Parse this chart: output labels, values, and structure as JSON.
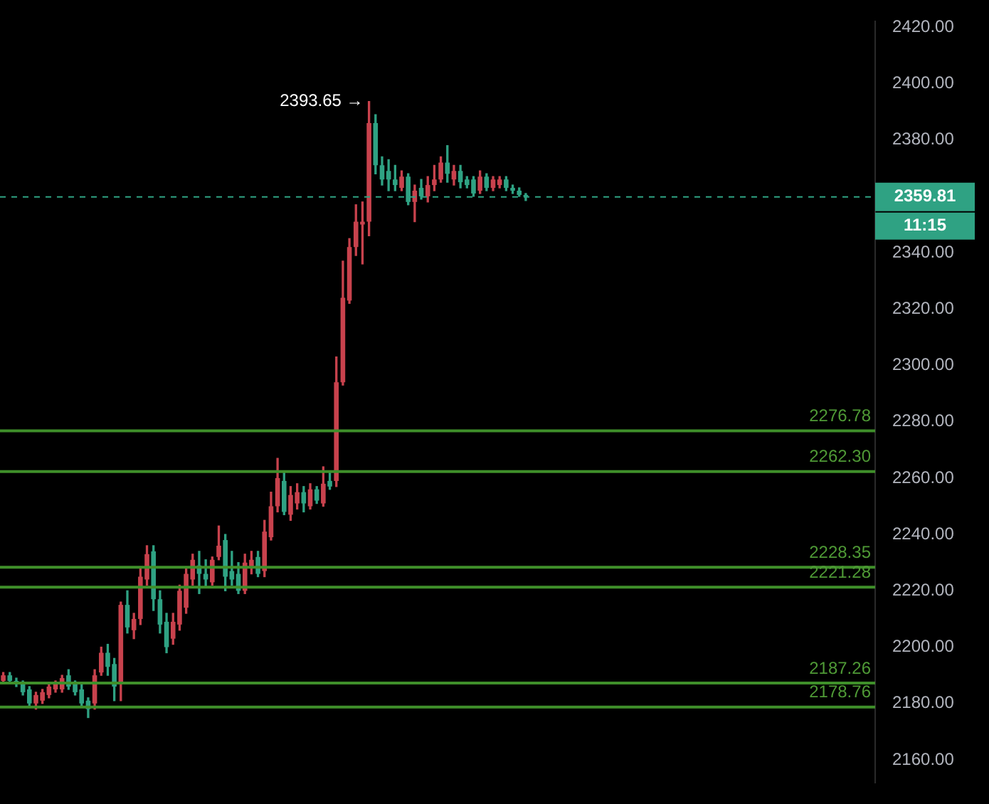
{
  "chart_data": {
    "type": "candlestick",
    "categories": [
      null,
      null,
      null,
      null,
      null,
      null,
      null,
      null,
      null,
      null,
      null,
      null,
      null,
      null,
      null,
      null,
      null,
      null,
      null,
      null,
      null,
      null,
      null,
      null,
      null,
      null,
      null,
      null,
      null,
      null,
      null,
      null,
      null,
      null,
      null,
      null,
      null,
      null,
      null,
      null,
      null,
      null,
      null,
      null,
      null,
      null,
      null,
      null,
      null,
      null,
      null,
      null,
      null,
      null,
      null,
      null,
      null,
      null,
      null,
      null,
      null,
      null,
      null,
      null,
      null,
      null,
      null,
      null,
      null,
      null,
      null,
      null,
      null,
      null,
      null,
      null,
      null,
      null,
      null,
      null,
      null,
      null,
      null,
      null,
      null,
      null,
      null,
      null,
      null,
      null,
      null,
      null,
      null,
      null,
      null,
      null,
      null,
      null,
      null,
      null,
      null,
      null,
      null,
      null,
      null,
      null,
      null,
      null,
      null,
      null,
      null,
      null,
      null,
      null,
      null,
      null,
      null,
      null,
      null,
      null,
      null,
      null,
      null,
      null,
      null,
      null,
      null,
      null,
      null,
      null,
      null,
      null,
      null,
      null
    ],
    "ohlc": [
      [
        2188,
        2191,
        2187,
        2190
      ],
      [
        2190,
        2191,
        2187,
        2188
      ],
      [
        2188,
        2189,
        2186,
        2187
      ],
      [
        2187,
        2188,
        2183,
        2184
      ],
      [
        2185,
        2186,
        2179,
        2180
      ],
      [
        2180,
        2184,
        2178,
        2183
      ],
      [
        2181,
        2185,
        2180,
        2184
      ],
      [
        2183,
        2187,
        2182,
        2186
      ],
      [
        2185,
        2188,
        2184,
        2187
      ],
      [
        2185,
        2190,
        2184,
        2189
      ],
      [
        2190,
        2192,
        2185,
        2186
      ],
      [
        2187,
        2188,
        2183,
        2184
      ],
      [
        2185,
        2187,
        2179,
        2180
      ],
      [
        2181,
        2182,
        2175,
        2178
      ],
      [
        2180,
        2192,
        2178,
        2190
      ],
      [
        2191,
        2200,
        2190,
        2198
      ],
      [
        2198,
        2201,
        2190,
        2193
      ],
      [
        2194,
        2196,
        2181,
        2186
      ],
      [
        2187,
        2216,
        2181,
        2215
      ],
      [
        2215,
        2220,
        2205,
        2207
      ],
      [
        2206,
        2212,
        2203,
        2210
      ],
      [
        2210,
        2228,
        2208,
        2225
      ],
      [
        2224,
        2236,
        2222,
        2233
      ],
      [
        2234,
        2236,
        2213,
        2217
      ],
      [
        2217,
        2220,
        2205,
        2208
      ],
      [
        2209,
        2212,
        2198,
        2200
      ],
      [
        2203,
        2212,
        2201,
        2209
      ],
      [
        2208,
        2222,
        2206,
        2220
      ],
      [
        2214,
        2228,
        2212,
        2226
      ],
      [
        2224,
        2233,
        2222,
        2231
      ],
      [
        2229,
        2234,
        2219,
        2226
      ],
      [
        2226,
        2231,
        2221,
        2224
      ],
      [
        2223,
        2232,
        2222,
        2231
      ],
      [
        2232,
        2243,
        2231,
        2236
      ],
      [
        2238,
        2240,
        2220,
        2225
      ],
      [
        2227,
        2234,
        2222,
        2224
      ],
      [
        2226,
        2230,
        2219,
        2220
      ],
      [
        2220,
        2233,
        2219,
        2230
      ],
      [
        2228,
        2234,
        2226,
        2231
      ],
      [
        2232,
        2234,
        2225,
        2226
      ],
      [
        2227,
        2245,
        2225,
        2241
      ],
      [
        2239,
        2255,
        2238,
        2250
      ],
      [
        2250,
        2267,
        2248,
        2260
      ],
      [
        2259,
        2262,
        2247,
        2248
      ],
      [
        2247,
        2257,
        2245,
        2254
      ],
      [
        2251,
        2258,
        2249,
        2255
      ],
      [
        2255,
        2257,
        2248,
        2251
      ],
      [
        2250,
        2258,
        2249,
        2256
      ],
      [
        2256,
        2257,
        2251,
        2252
      ],
      [
        2251,
        2264,
        2250,
        2258
      ],
      [
        2259,
        2262,
        2256,
        2257
      ],
      [
        2259,
        2303,
        2257,
        2294
      ],
      [
        2294,
        2337,
        2293,
        2324
      ],
      [
        2323,
        2345,
        2322,
        2342
      ],
      [
        2342,
        2357,
        2339,
        2351
      ],
      [
        2350,
        2358,
        2336,
        2351
      ],
      [
        2351,
        2393.65,
        2346,
        2386
      ],
      [
        2386,
        2389,
        2368,
        2371
      ],
      [
        2371,
        2374,
        2364,
        2366
      ],
      [
        2369,
        2373,
        2362,
        2366
      ],
      [
        2366,
        2371,
        2362,
        2364
      ],
      [
        2363,
        2369,
        2362,
        2367
      ],
      [
        2367,
        2368,
        2357,
        2358
      ],
      [
        2358,
        2364,
        2351,
        2362
      ],
      [
        2363,
        2366,
        2359,
        2360
      ],
      [
        2360,
        2367,
        2358,
        2364
      ],
      [
        2364,
        2371,
        2362,
        2366
      ],
      [
        2366,
        2374,
        2365,
        2372
      ],
      [
        2372,
        2378,
        2365,
        2368
      ],
      [
        2366,
        2371,
        2364,
        2369
      ],
      [
        2369,
        2371,
        2363,
        2365
      ],
      [
        2366,
        2367,
        2363,
        2364
      ],
      [
        2366,
        2367,
        2360,
        2361
      ],
      [
        2362,
        2369,
        2361,
        2367
      ],
      [
        2367,
        2368,
        2362,
        2363
      ],
      [
        2363,
        2367,
        2362,
        2366
      ],
      [
        2364,
        2367,
        2363,
        2366
      ],
      [
        2366,
        2367,
        2362,
        2363
      ],
      [
        2363,
        2364,
        2361,
        2362
      ],
      [
        2362,
        2363,
        2360,
        2360.5
      ],
      [
        2360.5,
        2361,
        2358.5,
        2359.81
      ],
      null,
      null,
      null,
      null,
      null,
      null,
      null,
      null,
      null,
      null,
      null,
      null,
      null,
      null,
      null,
      null,
      null,
      null,
      null,
      null,
      null,
      null,
      null,
      null,
      null,
      null,
      null,
      null,
      null,
      null,
      null,
      null,
      null,
      null,
      null,
      null,
      null,
      null,
      null,
      null,
      null,
      null,
      null,
      null,
      null,
      null,
      null,
      null,
      null,
      null,
      null,
      null,
      null
    ],
    "colors": [
      "#c8424d",
      "#2fa283",
      "#2fa283",
      "#2fa283",
      "#2fa283",
      "#c8424d",
      "#c8424d",
      "#c8424d",
      "#c8424d",
      "#c8424d",
      "#2fa283",
      "#2fa283",
      "#2fa283",
      "#2fa283",
      "#c8424d",
      "#c8424d",
      "#2fa283",
      "#2fa283",
      "#c8424d",
      "#2fa283",
      "#c8424d",
      "#c8424d",
      "#c8424d",
      "#2fa283",
      "#2fa283",
      "#2fa283",
      "#c8424d",
      "#c8424d",
      "#c8424d",
      "#c8424d",
      "#2fa283",
      "#2fa283",
      "#c8424d",
      "#c8424d",
      "#2fa283",
      "#2fa283",
      "#2fa283",
      "#c8424d",
      "#c8424d",
      "#2fa283",
      "#c8424d",
      "#c8424d",
      "#c8424d",
      "#2fa283",
      "#c8424d",
      "#c8424d",
      "#2fa283",
      "#c8424d",
      "#2fa283",
      "#c8424d",
      "#2fa283",
      "#c8424d",
      "#c8424d",
      "#c8424d",
      "#c8424d",
      "#c8424d",
      "#c8424d",
      "#2fa283",
      "#2fa283",
      "#2fa283",
      "#2fa283",
      "#c8424d",
      "#2fa283",
      "#c8424d",
      "#2fa283",
      "#c8424d",
      "#c8424d",
      "#c8424d",
      "#2fa283",
      "#c8424d",
      "#2fa283",
      "#2fa283",
      "#2fa283",
      "#c8424d",
      "#2fa283",
      "#c8424d",
      "#c8424d",
      "#2fa283",
      "#2fa283",
      "#2fa283",
      "#2fa283",
      null,
      null,
      null,
      null,
      null,
      null,
      null,
      null,
      null,
      null,
      null,
      null,
      null,
      null,
      null,
      null,
      null,
      null,
      null,
      null,
      null,
      null,
      null,
      null,
      null,
      null,
      null,
      null,
      null,
      null,
      null,
      null,
      null,
      null,
      null,
      null,
      null,
      null,
      null,
      null,
      null,
      null,
      null,
      null,
      null,
      null,
      null,
      null,
      null,
      null,
      null,
      null,
      null
    ],
    "ylim": [
      2152,
      2422
    ],
    "yticks": [
      {
        "value": 2160,
        "label": "2160.00"
      },
      {
        "value": 2180,
        "label": "2180.00"
      },
      {
        "value": 2200,
        "label": "2200.00"
      },
      {
        "value": 2220,
        "label": "2220.00"
      },
      {
        "value": 2240,
        "label": "2240.00"
      },
      {
        "value": 2260,
        "label": "2260.00"
      },
      {
        "value": 2280,
        "label": "2280.00"
      },
      {
        "value": 2300,
        "label": "2300.00"
      },
      {
        "value": 2320,
        "label": "2320.00"
      },
      {
        "value": 2340,
        "label": "2340.00"
      },
      {
        "value": 2360,
        "label": null
      },
      {
        "value": 2380,
        "label": "2380.00"
      },
      {
        "value": 2400,
        "label": "2400.00"
      },
      {
        "value": 2420,
        "label": "2420.00"
      }
    ],
    "tick_labels": "y",
    "grid": false,
    "legend": false,
    "ref_lines": [
      {
        "axis": "y",
        "value": 2276.78,
        "label": "2276.78",
        "color": "#3f8f2a"
      },
      {
        "axis": "y",
        "value": 2262.3,
        "label": "2262.30",
        "color": "#3f8f2a"
      },
      {
        "axis": "y",
        "value": 2228.35,
        "label": "2228.35",
        "color": "#3f8f2a"
      },
      {
        "axis": "y",
        "value": 2221.28,
        "label": "2221.28",
        "color": "#3f8f2a"
      },
      {
        "axis": "y",
        "value": 2187.26,
        "label": "2187.26",
        "color": "#3f8f2a"
      },
      {
        "axis": "y",
        "value": 2178.76,
        "label": "2178.76",
        "color": "#3f8f2a"
      },
      {
        "axis": "y",
        "value": 2359.81,
        "label": "2359.81",
        "color": "#2fa283",
        "line_style": "dashed"
      }
    ],
    "annotations": [
      "2393.65 →",
      "11:15"
    ]
  }
}
